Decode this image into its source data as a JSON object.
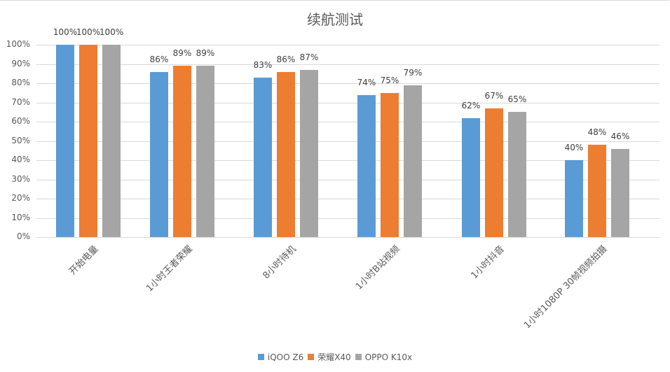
{
  "chart_data": {
    "type": "bar",
    "title": "续航测试",
    "xlabel": "",
    "ylabel": "",
    "ylim": [
      0,
      100
    ],
    "yticks": [
      "0%",
      "10%",
      "20%",
      "30%",
      "40%",
      "50%",
      "60%",
      "70%",
      "80%",
      "90%",
      "100%"
    ],
    "grid": true,
    "legend_position": "bottom",
    "categories": [
      "开始电量",
      "1小时王者荣耀",
      "8小时待机",
      "1小时B站视频",
      "1小时抖音",
      "1小时1080P 30帧视频拍摄"
    ],
    "series": [
      {
        "name": "iQOO Z6",
        "color": "#5b9bd5",
        "values": [
          100,
          86,
          83,
          74,
          62,
          40
        ]
      },
      {
        "name": "荣耀X40",
        "color": "#ed7d31",
        "values": [
          100,
          89,
          86,
          75,
          67,
          48
        ]
      },
      {
        "name": "OPPO K10x",
        "color": "#a5a5a5",
        "values": [
          100,
          89,
          87,
          79,
          65,
          46
        ]
      }
    ],
    "data_label_suffix": "%"
  }
}
